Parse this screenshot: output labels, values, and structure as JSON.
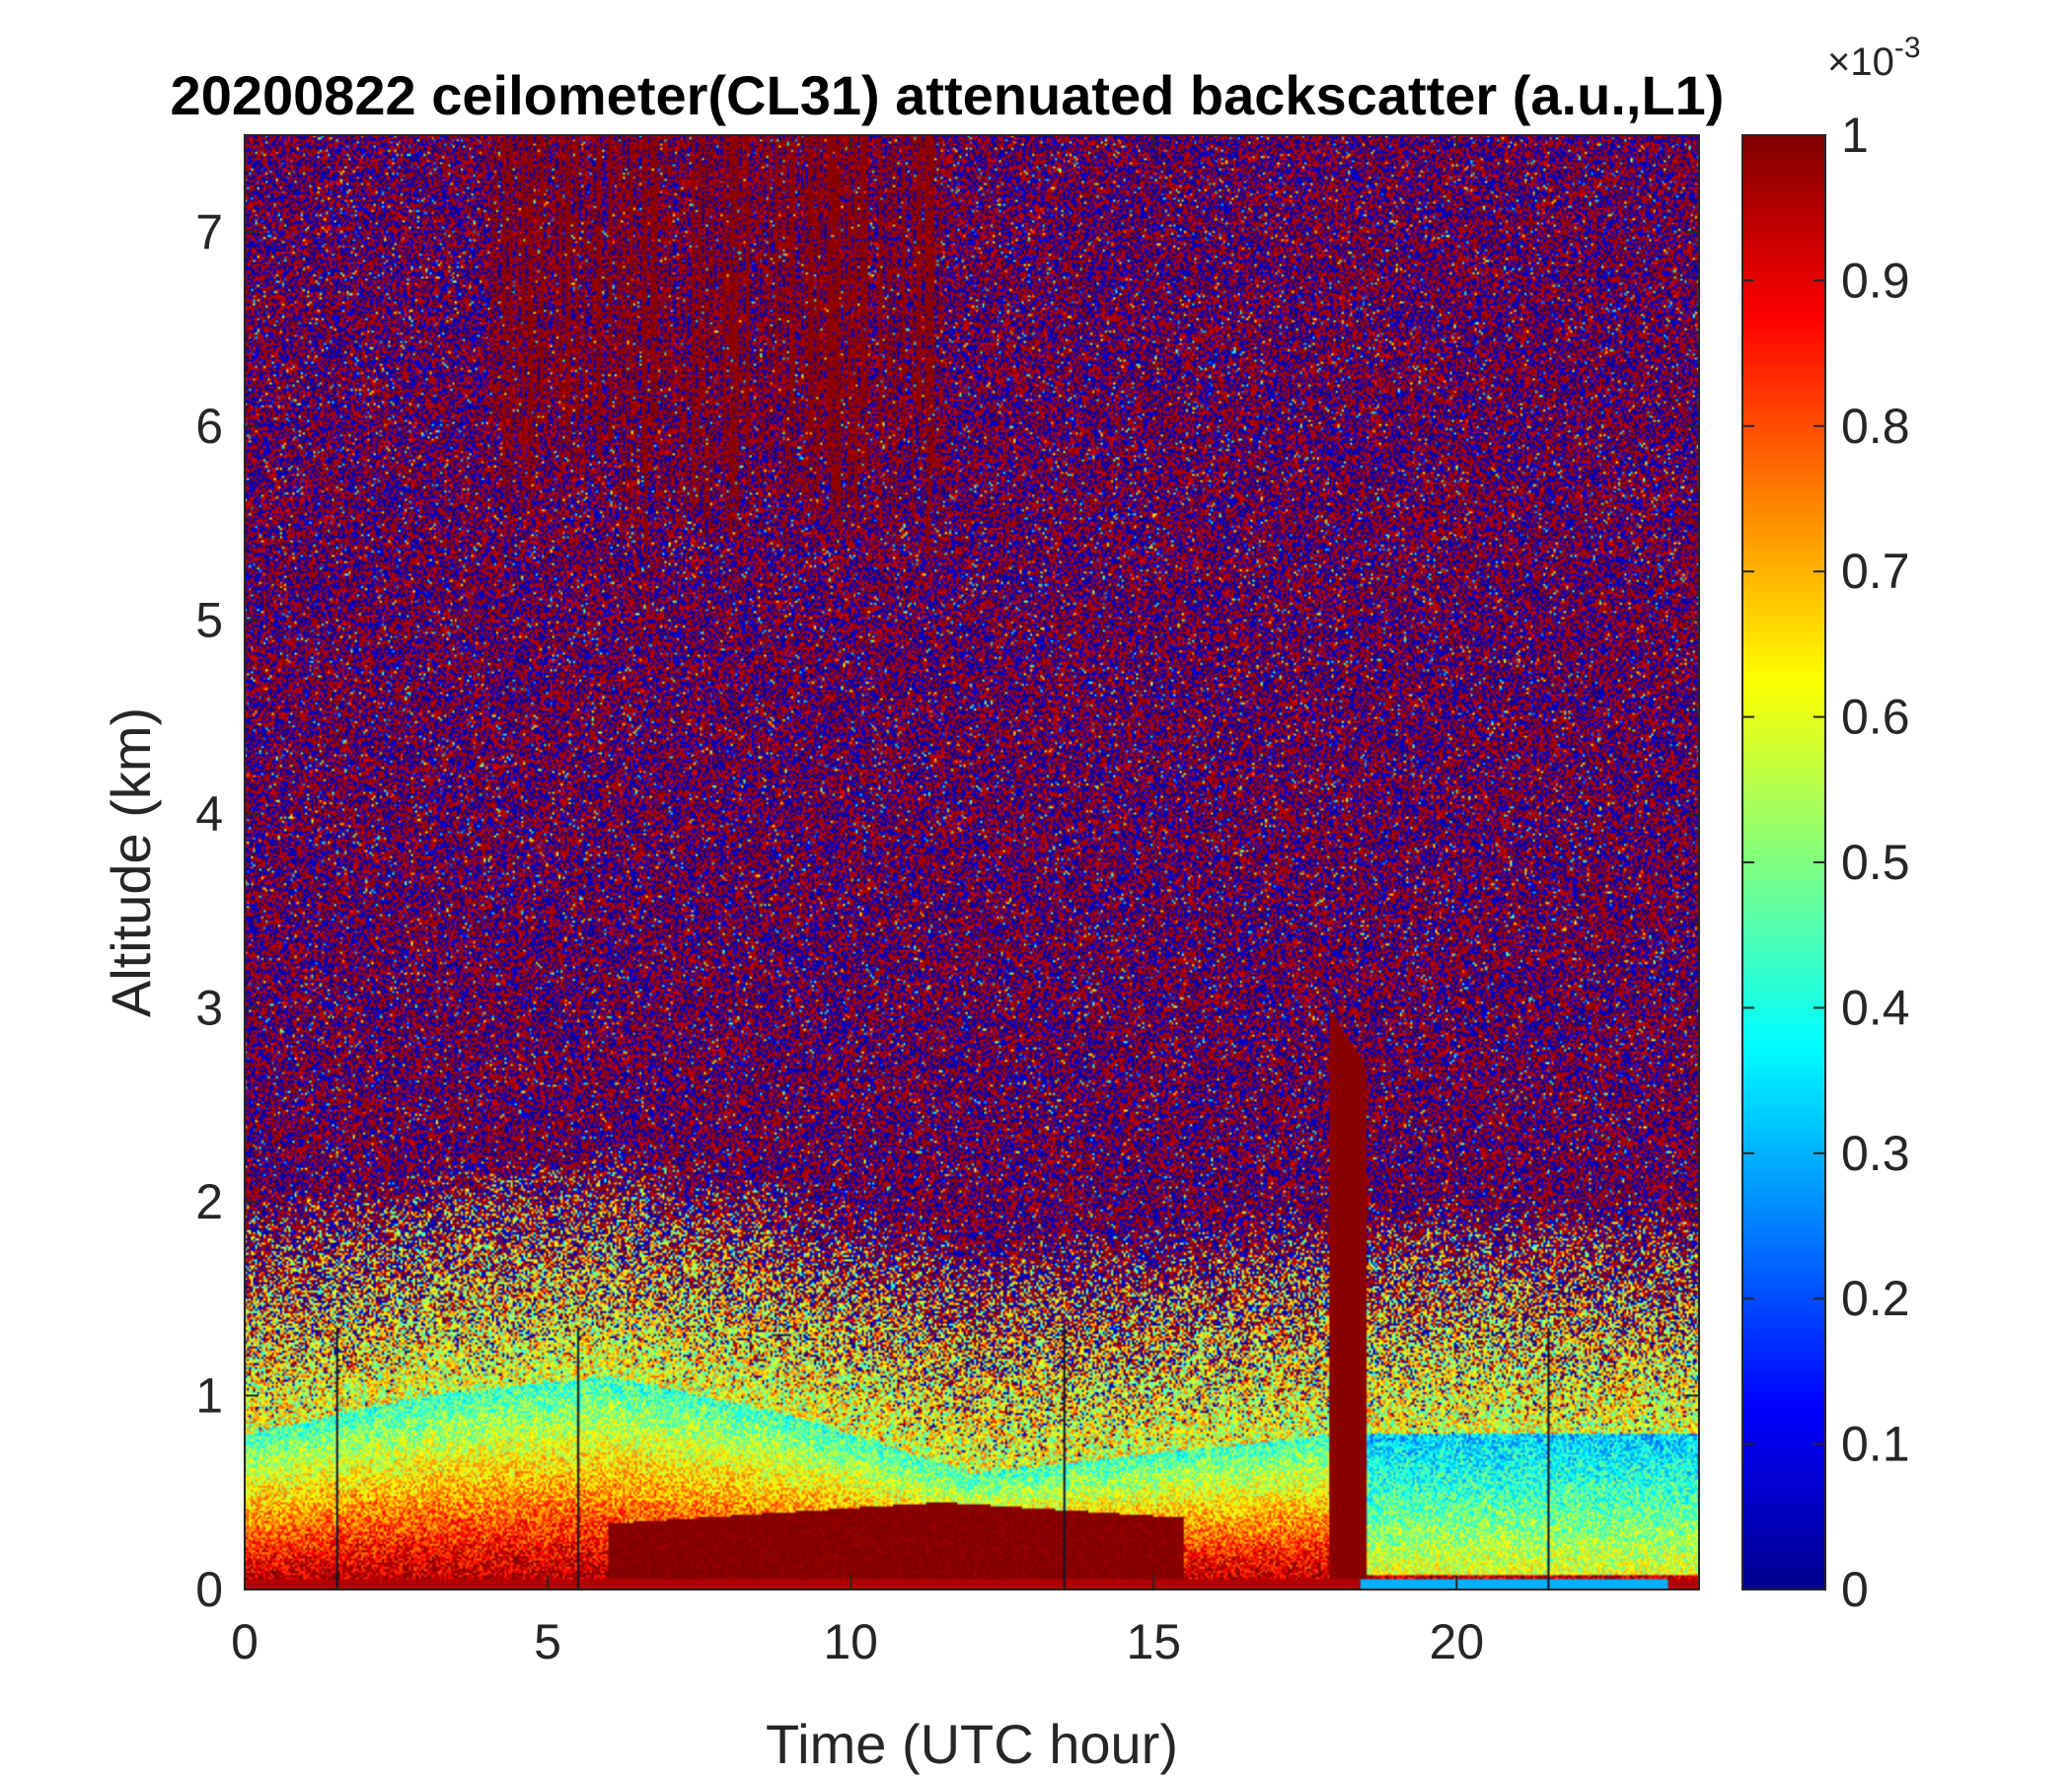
{
  "chart_data": {
    "type": "heatmap",
    "title": "20200822 ceilometer(CL31) attenuated backscatter (a.u.,L1)",
    "xlabel": "Time (UTC hour)",
    "ylabel": "Altitude (km)",
    "xlim": [
      0,
      24
    ],
    "ylim": [
      0,
      7.5
    ],
    "xticks": [
      0,
      5,
      10,
      15,
      20
    ],
    "yticks": [
      0,
      1,
      2,
      3,
      4,
      5,
      6,
      7
    ],
    "colormap": "jet",
    "colorbar": {
      "label_exponent": "×10-3",
      "exponent_base": "×10",
      "exponent_power": "-3",
      "clim": [
        0,
        1
      ],
      "ticks": [
        0,
        0.1,
        0.2,
        0.3,
        0.4,
        0.5,
        0.6,
        0.7,
        0.8,
        0.9,
        1
      ],
      "tick_labels": [
        "0",
        "0.1",
        "0.2",
        "0.3",
        "0.4",
        "0.5",
        "0.6",
        "0.7",
        "0.8",
        "0.9",
        "1"
      ]
    },
    "features": {
      "background": "noise (dark blue / dark red speckle) above ~1.5 km",
      "surface_layer": "high backscatter (0.6–1.0) below ~0.5 km for most of the day",
      "boundary_layer_top_km": [
        {
          "t": 0,
          "z": 0.8
        },
        {
          "t": 3,
          "z": 1.0
        },
        {
          "t": 6,
          "z": 1.1
        },
        {
          "t": 9,
          "z": 0.9
        },
        {
          "t": 12,
          "z": 0.6
        },
        {
          "t": 15,
          "z": 0.7
        },
        {
          "t": 18,
          "z": 0.8
        },
        {
          "t": 21,
          "z": 0.8
        },
        {
          "t": 24,
          "z": 0.8
        }
      ],
      "precipitation_column": {
        "t_start": 17.9,
        "t_end": 18.5,
        "z_top": 3.0
      },
      "upper_cloud": {
        "t_start": 4.0,
        "t_end": 11.5,
        "z_bottom": 5.3,
        "z_top": 7.5
      },
      "instrument_gaps_hours": [
        1.5,
        5.5,
        13.5,
        21.5
      ]
    }
  }
}
